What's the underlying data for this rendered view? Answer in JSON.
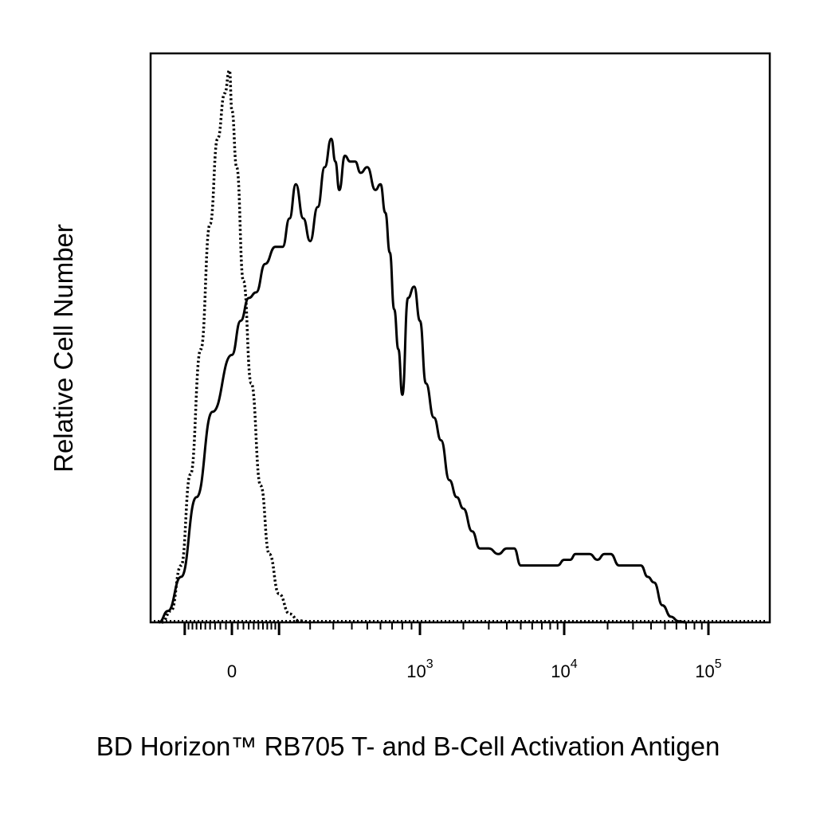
{
  "chart_data": {
    "type": "line",
    "title": "",
    "xlabel": "BD Horizon™ RB705 T- and B-Cell Activation Antigen",
    "ylabel": "Relative Cell Number",
    "x_scale": "biexponential (logicle)",
    "xlim": [
      -300,
      200000
    ],
    "ylim": [
      0,
      100
    ],
    "ticks": [
      {
        "label": "0",
        "value": 0
      },
      {
        "label": "10",
        "sup": "3",
        "value": 1000
      },
      {
        "label": "10",
        "sup": "4",
        "value": 10000
      },
      {
        "label": "10",
        "sup": "5",
        "value": 100000
      }
    ],
    "grid": false,
    "legend": "none",
    "series": [
      {
        "style": "dotted",
        "color": "#000000",
        "x": [
          -170,
          -140,
          -110,
          -85,
          -60,
          -40,
          -25,
          -12,
          -4,
          0,
          8,
          20,
          35,
          55,
          75,
          100,
          130,
          160,
          200
        ],
        "y": [
          0,
          2,
          10,
          26,
          48,
          70,
          85,
          93,
          97,
          90,
          80,
          60,
          42,
          24,
          12,
          5,
          1.5,
          0.3,
          0
        ]
      },
      {
        "style": "solid",
        "color": "#000000",
        "x": [
          -180,
          -150,
          -110,
          -70,
          -35,
          0,
          15,
          30,
          45,
          65,
          90,
          110,
          130,
          150,
          175,
          200,
          230,
          260,
          290,
          310,
          330,
          360,
          390,
          420,
          455,
          500,
          560,
          600,
          640,
          680,
          720,
          760,
          800,
          860,
          930,
          1000,
          1100,
          1250,
          1400,
          1600,
          1800,
          2000,
          2300,
          2600,
          3000,
          3500,
          4000,
          4500,
          5000,
          6000,
          7000,
          8000,
          9000,
          10000,
          11000,
          12000,
          13000,
          14000,
          15000,
          17000,
          19000,
          21000,
          24000,
          27000,
          30000,
          34000,
          38000,
          42000,
          48000,
          55000,
          62000,
          70000
        ],
        "y": [
          0,
          2,
          8,
          22,
          37,
          47,
          53,
          57,
          58,
          63,
          66,
          66,
          71,
          77,
          71,
          67,
          73,
          80,
          85,
          81,
          76,
          82,
          81,
          81,
          79,
          80,
          76,
          77,
          72,
          65,
          55,
          48,
          40,
          57,
          59,
          53,
          42,
          36,
          32,
          25,
          22,
          20,
          16,
          13,
          13,
          12,
          13,
          13,
          10,
          10,
          10,
          10,
          10,
          11,
          11,
          12,
          12,
          12,
          12,
          11,
          12,
          12,
          10,
          10,
          10,
          10,
          8,
          7,
          3,
          1,
          0.2,
          0
        ]
      }
    ]
  }
}
